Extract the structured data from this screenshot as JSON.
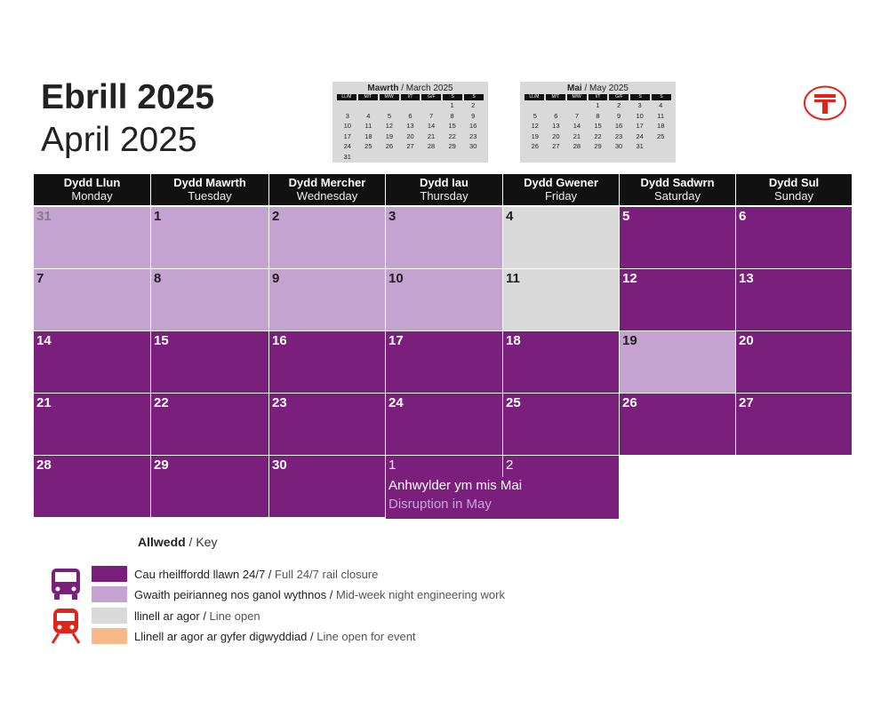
{
  "title": {
    "welsh": "Ebrill 2025",
    "english": "April 2025"
  },
  "mini_calendars": [
    {
      "name_welsh": "Mawrth",
      "sep": " / ",
      "name_english": "March 2025",
      "day_heads": [
        "LL/M",
        "M/T",
        "M/W",
        "I/T",
        "G/F",
        "S",
        "S"
      ],
      "weeks": [
        [
          "",
          "",
          "",
          "",
          "",
          "1",
          "2"
        ],
        [
          "3",
          "4",
          "5",
          "6",
          "7",
          "8",
          "9"
        ],
        [
          "10",
          "11",
          "12",
          "13",
          "14",
          "15",
          "16"
        ],
        [
          "17",
          "18",
          "19",
          "20",
          "21",
          "22",
          "23"
        ],
        [
          "24",
          "25",
          "26",
          "27",
          "28",
          "29",
          "30"
        ],
        [
          "31",
          "",
          "",
          "",
          "",
          "",
          ""
        ]
      ]
    },
    {
      "name_welsh": "Mai",
      "sep": " / ",
      "name_english": "May 2025",
      "day_heads": [
        "LL/M",
        "M/T",
        "M/W",
        "I/T",
        "G/F",
        "S",
        "S"
      ],
      "weeks": [
        [
          "",
          "",
          "",
          "1",
          "2",
          "3",
          "4"
        ],
        [
          "5",
          "6",
          "7",
          "8",
          "9",
          "10",
          "11"
        ],
        [
          "12",
          "13",
          "14",
          "15",
          "16",
          "17",
          "18"
        ],
        [
          "19",
          "20",
          "21",
          "22",
          "23",
          "24",
          "25"
        ],
        [
          "26",
          "27",
          "28",
          "29",
          "30",
          "31",
          ""
        ]
      ]
    }
  ],
  "weekdays": [
    {
      "welsh": "Dydd Llun",
      "english": "Monday"
    },
    {
      "welsh": "Dydd Mawrth",
      "english": "Tuesday"
    },
    {
      "welsh": "Dydd Mercher",
      "english": "Wednesday"
    },
    {
      "welsh": "Dydd Iau",
      "english": "Thursday"
    },
    {
      "welsh": "Dydd Gwener",
      "english": "Friday"
    },
    {
      "welsh": "Dydd Sadwrn",
      "english": "Saturday"
    },
    {
      "welsh": "Dydd Sul",
      "english": "Sunday"
    }
  ],
  "weeks": [
    [
      {
        "day": "31",
        "status": "night",
        "muted": true
      },
      {
        "day": "1",
        "status": "night"
      },
      {
        "day": "2",
        "status": "night"
      },
      {
        "day": "3",
        "status": "night"
      },
      {
        "day": "4",
        "status": "open"
      },
      {
        "day": "5",
        "status": "full"
      },
      {
        "day": "6",
        "status": "full"
      }
    ],
    [
      {
        "day": "7",
        "status": "night"
      },
      {
        "day": "8",
        "status": "night"
      },
      {
        "day": "9",
        "status": "night"
      },
      {
        "day": "10",
        "status": "night"
      },
      {
        "day": "11",
        "status": "open"
      },
      {
        "day": "12",
        "status": "full"
      },
      {
        "day": "13",
        "status": "full"
      }
    ],
    [
      {
        "day": "14",
        "status": "full"
      },
      {
        "day": "15",
        "status": "full"
      },
      {
        "day": "16",
        "status": "full"
      },
      {
        "day": "17",
        "status": "full"
      },
      {
        "day": "18",
        "status": "full"
      },
      {
        "day": "19",
        "status": "night"
      },
      {
        "day": "20",
        "status": "full"
      }
    ],
    [
      {
        "day": "21",
        "status": "full"
      },
      {
        "day": "22",
        "status": "full"
      },
      {
        "day": "23",
        "status": "full"
      },
      {
        "day": "24",
        "status": "full"
      },
      {
        "day": "25",
        "status": "full"
      },
      {
        "day": "26",
        "status": "full"
      },
      {
        "day": "27",
        "status": "full"
      }
    ],
    [
      {
        "day": "28",
        "status": "full"
      },
      {
        "day": "29",
        "status": "full"
      },
      {
        "day": "30",
        "status": "full"
      },
      {
        "day": "1",
        "status": "full"
      },
      {
        "day": "2",
        "status": "full"
      }
    ]
  ],
  "may_note": {
    "welsh": "Anhwylder ym mis Mai",
    "english": "Disruption in May"
  },
  "key": {
    "title_welsh": "Allwedd",
    "title_sep": " / ",
    "title_english": "Key",
    "items": [
      {
        "welsh": "Cau rheilffordd llawn 24/7",
        "sep": " / ",
        "english": "Full 24/7 rail closure",
        "color": "#7a1f7c"
      },
      {
        "welsh": "Gwaith peirianneg nos ganol wythnos",
        "sep": " / ",
        "english": "Mid-week night engineering work",
        "color": "#c4a3d0"
      },
      {
        "welsh": "llinell ar agor",
        "sep": " / ",
        "english": "Line open",
        "color": "#d9d9d9"
      },
      {
        "welsh": "Llinell ar agor ar gyfer digwyddiad",
        "sep": " / ",
        "english": "Line open for event",
        "color": "#f7b98a"
      }
    ]
  },
  "colors": {
    "full_closure": "#7a1f7c",
    "night_work": "#c4a3d0",
    "line_open": "#d9d9d9",
    "event": "#f7b98a",
    "brand_red": "#e2231a"
  },
  "icons": [
    "bus-icon",
    "train-icon",
    "tfw-logo-icon"
  ]
}
